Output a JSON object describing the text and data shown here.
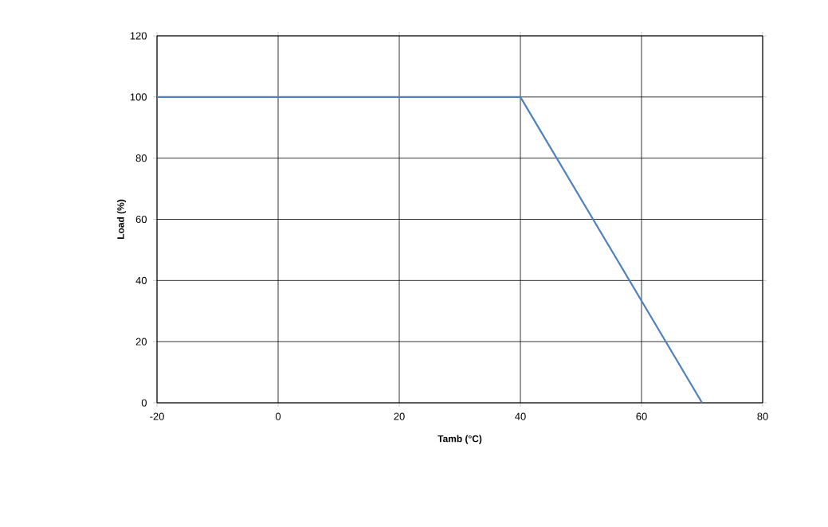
{
  "chart_data": {
    "type": "line",
    "xlabel": "Tamb (°C)",
    "ylabel": "Load (%)",
    "x": [
      -20,
      40,
      70
    ],
    "series": [
      {
        "color": "#4f81bd",
        "values": [
          100,
          100,
          0
        ]
      }
    ],
    "xlim": [
      -20,
      80
    ],
    "ylim": [
      0,
      120
    ],
    "xticks": [
      -20,
      0,
      20,
      40,
      60,
      80
    ],
    "yticks": [
      0,
      20,
      40,
      60,
      80,
      100,
      120
    ],
    "grid": true,
    "marker": "none",
    "line_style": "solid"
  }
}
